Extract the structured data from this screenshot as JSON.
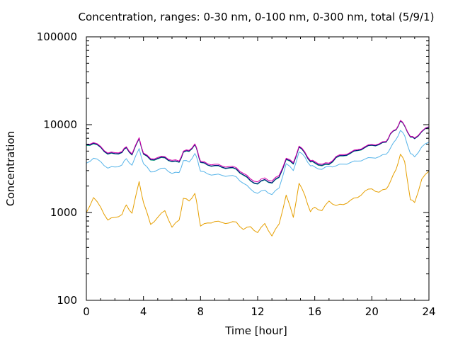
{
  "chart_data": {
    "type": "line",
    "title": "Concentration, ranges: 0-30 nm, 0-100 nm, 0-300 nm, total (5/9/1)",
    "xlabel": "Time [hour]",
    "ylabel": "Concentration",
    "xlim": [
      0,
      24
    ],
    "ylim": [
      100,
      100000
    ],
    "yscale": "log",
    "grid": false,
    "x_ticks": [
      0,
      4,
      8,
      12,
      16,
      20,
      24
    ],
    "x_tick_labels": [
      "0",
      "4",
      "8",
      "12",
      "16",
      "20",
      "24"
    ],
    "y_ticks": [
      100,
      1000,
      10000,
      100000
    ],
    "y_tick_labels": [
      "100",
      "1000",
      "10000",
      "100000"
    ],
    "x": [
      0,
      0.5,
      1,
      1.5,
      2,
      2.5,
      2.8,
      3.2,
      3.7,
      4,
      4.5,
      5,
      5.5,
      6,
      6.5,
      6.8,
      7.2,
      7.6,
      7.8,
      8,
      8.5,
      9,
      9.5,
      10,
      10.5,
      11,
      11.5,
      12,
      12.5,
      13,
      13.5,
      14,
      14.5,
      14.9,
      15.3,
      15.7,
      16,
      16.5,
      17,
      17.5,
      18,
      18.5,
      19,
      19.5,
      20,
      20.5,
      21,
      21.3,
      21.7,
      22,
      22.3,
      22.7,
      23,
      23.5,
      24
    ],
    "series": [
      {
        "color": "#e69f00",
        "values": [
          1000,
          1480,
          1150,
          820,
          880,
          950,
          1220,
          980,
          2250,
          1300,
          730,
          880,
          1050,
          680,
          820,
          1450,
          1350,
          1650,
          1120,
          700,
          760,
          790,
          770,
          760,
          780,
          640,
          690,
          590,
          750,
          540,
          740,
          1580,
          880,
          2150,
          1580,
          1020,
          1150,
          1050,
          1350,
          1200,
          1230,
          1380,
          1480,
          1750,
          1860,
          1700,
          1850,
          2250,
          3100,
          4600,
          3800,
          1400,
          1300,
          2400,
          2950
        ]
      },
      {
        "color": "#56b4e9",
        "values": [
          3650,
          4150,
          3800,
          3200,
          3300,
          3480,
          4100,
          3450,
          5350,
          3600,
          2900,
          3050,
          3200,
          2780,
          2850,
          3900,
          3750,
          4700,
          3900,
          2950,
          2750,
          2700,
          2650,
          2620,
          2550,
          2150,
          1850,
          1650,
          1800,
          1600,
          1900,
          3600,
          3000,
          4900,
          4300,
          3400,
          3300,
          3100,
          3350,
          3400,
          3550,
          3700,
          3850,
          4050,
          4200,
          4300,
          4600,
          5400,
          6800,
          8600,
          7500,
          4700,
          4300,
          5600,
          6300
        ]
      },
      {
        "color": "#009e73",
        "values": [
          5800,
          6050,
          5500,
          4600,
          4650,
          4800,
          5450,
          4500,
          6950,
          4600,
          3950,
          4080,
          4180,
          3780,
          3720,
          4850,
          4950,
          5900,
          4800,
          3700,
          3450,
          3400,
          3250,
          3200,
          3100,
          2650,
          2280,
          2100,
          2350,
          2150,
          2500,
          4000,
          3550,
          5550,
          4750,
          3750,
          3650,
          3400,
          3500,
          4200,
          4400,
          4700,
          5050,
          5450,
          5800,
          5900,
          6300,
          7800,
          8700,
          11000,
          9600,
          7200,
          6900,
          8300,
          9300
        ]
      },
      {
        "color": "#000080",
        "values": [
          5900,
          6150,
          5550,
          4650,
          4700,
          4850,
          5500,
          4550,
          7000,
          4650,
          4000,
          4130,
          4230,
          3820,
          3760,
          4900,
          5000,
          5950,
          4850,
          3740,
          3480,
          3440,
          3290,
          3240,
          3140,
          2690,
          2310,
          2130,
          2380,
          2180,
          2540,
          4050,
          3600,
          5600,
          4800,
          3800,
          3700,
          3450,
          3550,
          4250,
          4450,
          4750,
          5100,
          5500,
          5850,
          5950,
          6350,
          7850,
          8750,
          11100,
          9700,
          7250,
          6950,
          8350,
          9400
        ]
      },
      {
        "color": "#d400aa",
        "values": [
          6000,
          6250,
          5650,
          4750,
          4800,
          4950,
          5600,
          4650,
          7100,
          4750,
          4100,
          4230,
          4330,
          3920,
          3860,
          5000,
          5100,
          6050,
          4950,
          3840,
          3580,
          3540,
          3390,
          3340,
          3240,
          2790,
          2410,
          2230,
          2480,
          2280,
          2640,
          4150,
          3700,
          5700,
          4900,
          3900,
          3800,
          3550,
          3650,
          4350,
          4550,
          4850,
          5200,
          5600,
          5950,
          6050,
          6450,
          7950,
          8850,
          11200,
          9800,
          7350,
          7050,
          8450,
          9500
        ]
      }
    ]
  }
}
